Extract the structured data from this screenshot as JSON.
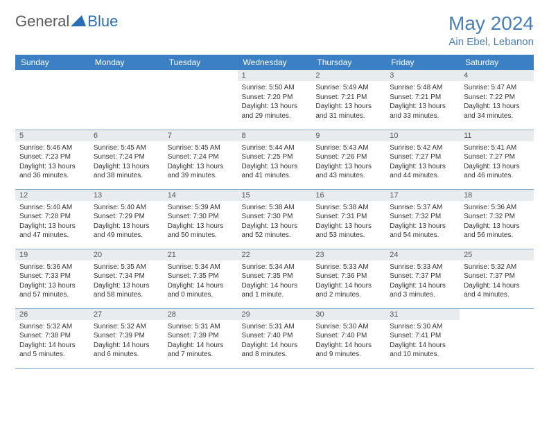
{
  "logo": {
    "text1": "General",
    "text2": "Blue"
  },
  "title": "May 2024",
  "location": "Ain Ebel, Lebanon",
  "colors": {
    "header_bg": "#3b7fc4",
    "title_color": "#4a7fb5",
    "daynum_bg": "#e8ecef",
    "rule": "#8aa8c8"
  },
  "day_labels": [
    "Sunday",
    "Monday",
    "Tuesday",
    "Wednesday",
    "Thursday",
    "Friday",
    "Saturday"
  ],
  "weeks": [
    [
      null,
      null,
      null,
      {
        "n": "1",
        "sunrise": "5:50 AM",
        "sunset": "7:20 PM",
        "dl": "13 hours and 29 minutes."
      },
      {
        "n": "2",
        "sunrise": "5:49 AM",
        "sunset": "7:21 PM",
        "dl": "13 hours and 31 minutes."
      },
      {
        "n": "3",
        "sunrise": "5:48 AM",
        "sunset": "7:21 PM",
        "dl": "13 hours and 33 minutes."
      },
      {
        "n": "4",
        "sunrise": "5:47 AM",
        "sunset": "7:22 PM",
        "dl": "13 hours and 34 minutes."
      }
    ],
    [
      {
        "n": "5",
        "sunrise": "5:46 AM",
        "sunset": "7:23 PM",
        "dl": "13 hours and 36 minutes."
      },
      {
        "n": "6",
        "sunrise": "5:45 AM",
        "sunset": "7:24 PM",
        "dl": "13 hours and 38 minutes."
      },
      {
        "n": "7",
        "sunrise": "5:45 AM",
        "sunset": "7:24 PM",
        "dl": "13 hours and 39 minutes."
      },
      {
        "n": "8",
        "sunrise": "5:44 AM",
        "sunset": "7:25 PM",
        "dl": "13 hours and 41 minutes."
      },
      {
        "n": "9",
        "sunrise": "5:43 AM",
        "sunset": "7:26 PM",
        "dl": "13 hours and 43 minutes."
      },
      {
        "n": "10",
        "sunrise": "5:42 AM",
        "sunset": "7:27 PM",
        "dl": "13 hours and 44 minutes."
      },
      {
        "n": "11",
        "sunrise": "5:41 AM",
        "sunset": "7:27 PM",
        "dl": "13 hours and 46 minutes."
      }
    ],
    [
      {
        "n": "12",
        "sunrise": "5:40 AM",
        "sunset": "7:28 PM",
        "dl": "13 hours and 47 minutes."
      },
      {
        "n": "13",
        "sunrise": "5:40 AM",
        "sunset": "7:29 PM",
        "dl": "13 hours and 49 minutes."
      },
      {
        "n": "14",
        "sunrise": "5:39 AM",
        "sunset": "7:30 PM",
        "dl": "13 hours and 50 minutes."
      },
      {
        "n": "15",
        "sunrise": "5:38 AM",
        "sunset": "7:30 PM",
        "dl": "13 hours and 52 minutes."
      },
      {
        "n": "16",
        "sunrise": "5:38 AM",
        "sunset": "7:31 PM",
        "dl": "13 hours and 53 minutes."
      },
      {
        "n": "17",
        "sunrise": "5:37 AM",
        "sunset": "7:32 PM",
        "dl": "13 hours and 54 minutes."
      },
      {
        "n": "18",
        "sunrise": "5:36 AM",
        "sunset": "7:32 PM",
        "dl": "13 hours and 56 minutes."
      }
    ],
    [
      {
        "n": "19",
        "sunrise": "5:36 AM",
        "sunset": "7:33 PM",
        "dl": "13 hours and 57 minutes."
      },
      {
        "n": "20",
        "sunrise": "5:35 AM",
        "sunset": "7:34 PM",
        "dl": "13 hours and 58 minutes."
      },
      {
        "n": "21",
        "sunrise": "5:34 AM",
        "sunset": "7:35 PM",
        "dl": "14 hours and 0 minutes."
      },
      {
        "n": "22",
        "sunrise": "5:34 AM",
        "sunset": "7:35 PM",
        "dl": "14 hours and 1 minute."
      },
      {
        "n": "23",
        "sunrise": "5:33 AM",
        "sunset": "7:36 PM",
        "dl": "14 hours and 2 minutes."
      },
      {
        "n": "24",
        "sunrise": "5:33 AM",
        "sunset": "7:37 PM",
        "dl": "14 hours and 3 minutes."
      },
      {
        "n": "25",
        "sunrise": "5:32 AM",
        "sunset": "7:37 PM",
        "dl": "14 hours and 4 minutes."
      }
    ],
    [
      {
        "n": "26",
        "sunrise": "5:32 AM",
        "sunset": "7:38 PM",
        "dl": "14 hours and 5 minutes."
      },
      {
        "n": "27",
        "sunrise": "5:32 AM",
        "sunset": "7:39 PM",
        "dl": "14 hours and 6 minutes."
      },
      {
        "n": "28",
        "sunrise": "5:31 AM",
        "sunset": "7:39 PM",
        "dl": "14 hours and 7 minutes."
      },
      {
        "n": "29",
        "sunrise": "5:31 AM",
        "sunset": "7:40 PM",
        "dl": "14 hours and 8 minutes."
      },
      {
        "n": "30",
        "sunrise": "5:30 AM",
        "sunset": "7:40 PM",
        "dl": "14 hours and 9 minutes."
      },
      {
        "n": "31",
        "sunrise": "5:30 AM",
        "sunset": "7:41 PM",
        "dl": "14 hours and 10 minutes."
      },
      null
    ]
  ],
  "labels": {
    "sunrise": "Sunrise: ",
    "sunset": "Sunset: ",
    "daylight": "Daylight: "
  }
}
